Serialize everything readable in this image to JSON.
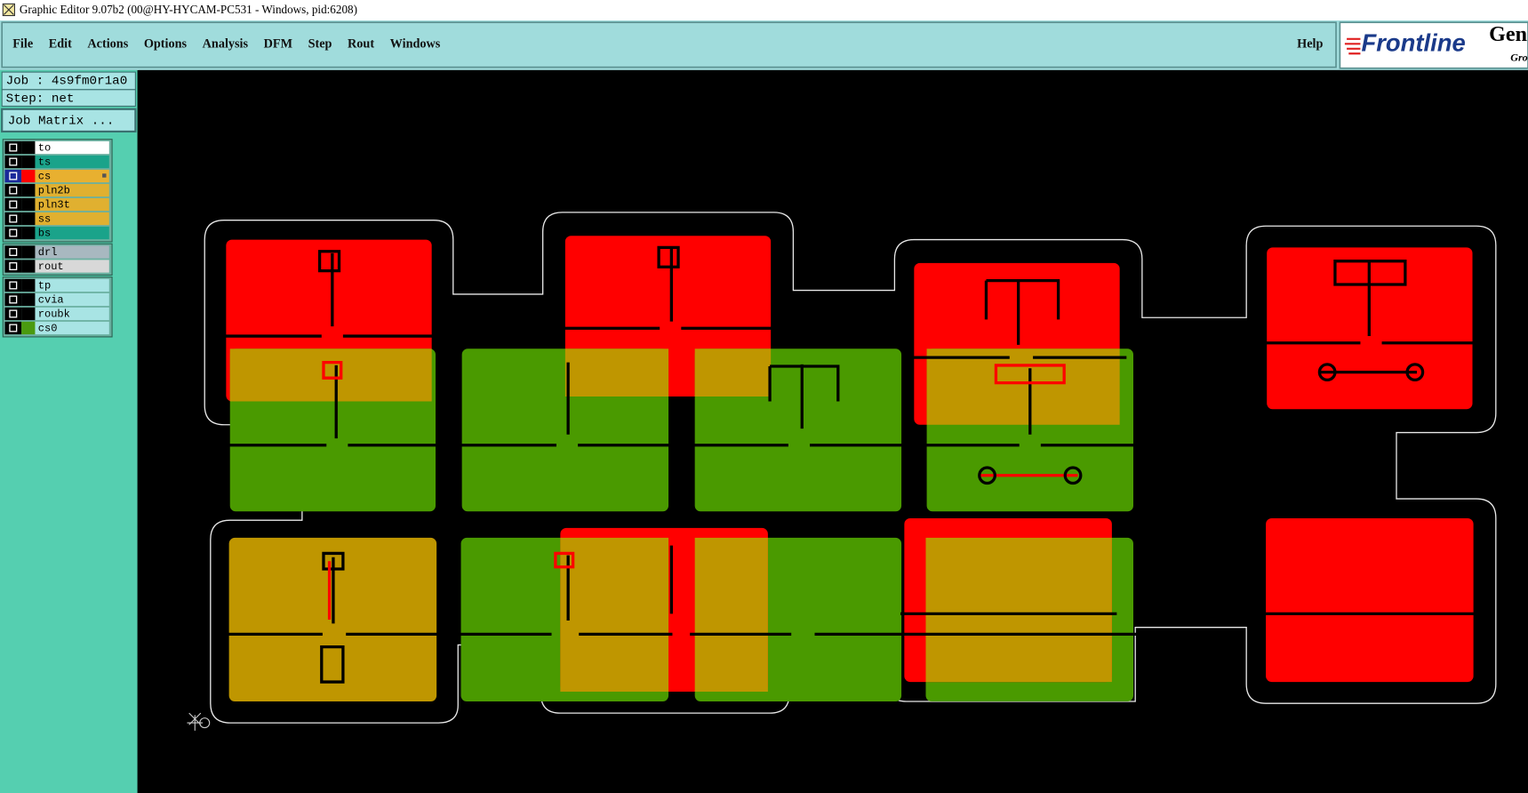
{
  "window": {
    "title": "Graphic Editor 9.07b2 (00@HY-HYCAM-PC531 - Windows, pid:6208)"
  },
  "menu": {
    "items": [
      "File",
      "Edit",
      "Actions",
      "Options",
      "Analysis",
      "DFM",
      "Step",
      "Rout",
      "Windows"
    ],
    "help": "Help"
  },
  "logo": {
    "brand": "Frontline",
    "product": "Gen",
    "sub": "Gro"
  },
  "job": {
    "job": "Job : 4s9fm0r1a0",
    "step": "Step: net",
    "matrix_button": "Job Matrix ..."
  },
  "layers": {
    "groups": [
      [
        {
          "name": "to",
          "color": "#ffffff"
        },
        {
          "name": "ts",
          "color": "#1aa38a"
        },
        {
          "name": "cs",
          "color": "#e8b030",
          "swatch": "#ff0000",
          "active": true
        },
        {
          "name": "pln2b",
          "color": "#e0b030"
        },
        {
          "name": "pln3t",
          "color": "#e0b030"
        },
        {
          "name": "ss",
          "color": "#e0b030"
        },
        {
          "name": "bs",
          "color": "#1aa38a"
        }
      ],
      [
        {
          "name": "drl",
          "color": "#a8b8c0"
        },
        {
          "name": "rout",
          "color": "#d8d8d8"
        }
      ],
      [
        {
          "name": "tp",
          "color": "#a8e4e4"
        },
        {
          "name": "cvia",
          "color": "#a8e4e4"
        },
        {
          "name": "roubk",
          "color": "#a8e4e4"
        },
        {
          "name": "cs0",
          "color": "#a8e4e4",
          "swatch": "#4a9a10"
        }
      ]
    ]
  }
}
